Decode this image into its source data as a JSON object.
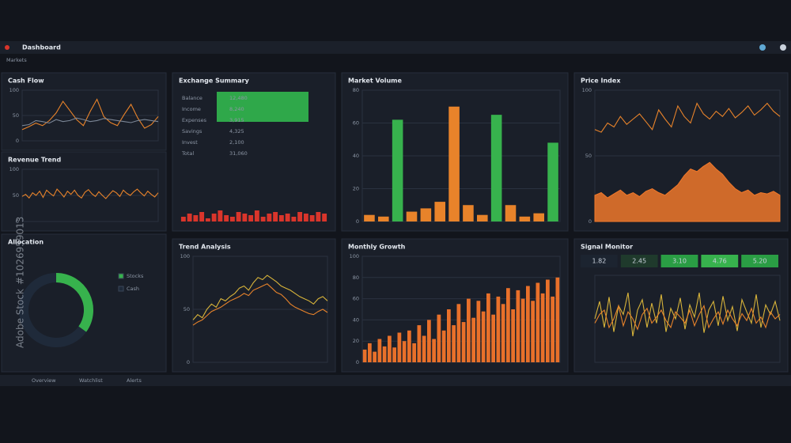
{
  "app": {
    "title": "Dashboard",
    "section": "Markets"
  },
  "panels": [
    {
      "title": "Cash Flow",
      "chart": {
        "type": "line",
        "ylim": [
          0,
          100
        ],
        "yticks": [
          0,
          50,
          100
        ],
        "grid": true,
        "series": [
          {
            "color": "#e8832a",
            "values": [
              22,
              28,
              35,
              30,
              40,
              55,
              78,
              60,
              42,
              30,
              58,
              82,
              48,
              36,
              30,
              52,
              72,
              45,
              25,
              32,
              48
            ]
          },
          {
            "color": "#7b8696",
            "values": [
              30,
              32,
              40,
              38,
              35,
              42,
              38,
              40,
              45,
              42,
              38,
              40,
              44,
              42,
              40,
              38,
              36,
              40,
              42,
              40,
              38
            ]
          }
        ]
      }
    },
    {
      "title": "Revenue Trend",
      "chart": {
        "type": "line",
        "ylim": [
          0,
          100
        ],
        "yticks": [
          0,
          50,
          100
        ],
        "grid": true,
        "series": [
          {
            "color": "#e8832a",
            "values": [
              48,
              52,
              45,
              55,
              50,
              58,
              46,
              60,
              54,
              49,
              62,
              55,
              47,
              58,
              52,
              60,
              50,
              45,
              56,
              61,
              53,
              48,
              57,
              50,
              44,
              52,
              59,
              55,
              48,
              60,
              54,
              50,
              57,
              62,
              55,
              49,
              58,
              52,
              47,
              55
            ]
          }
        ]
      }
    },
    {
      "title": "Exchange Summary",
      "table": {
        "rows": [
          [
            "Balance",
            "12,480"
          ],
          [
            "Income",
            "8,240"
          ],
          [
            "Expenses",
            "3,915"
          ],
          [
            "Savings",
            "4,325"
          ],
          [
            "Invest",
            "2,100"
          ],
          [
            "Total",
            "31,060"
          ]
        ]
      },
      "chart": {
        "type": "bar",
        "ylim": [
          0,
          10
        ],
        "color": "#d9352b",
        "values": [
          3,
          5,
          4,
          6,
          2,
          5,
          7,
          4,
          3,
          6,
          5,
          4,
          7,
          3,
          5,
          6,
          4,
          5,
          3,
          6,
          5,
          4,
          6,
          5
        ]
      }
    },
    {
      "title": "Market Volume",
      "chart": {
        "type": "bar",
        "ylim": [
          0,
          80
        ],
        "yticks": [
          0,
          20,
          40,
          60,
          80
        ],
        "grid": true,
        "values": [
          4,
          3,
          62,
          6,
          8,
          12,
          70,
          10,
          4,
          65,
          10,
          3,
          5,
          48
        ],
        "colors": [
          "#e8832a",
          "#e8832a",
          "#37b24d",
          "#e8832a",
          "#e8832a",
          "#e8832a",
          "#e8832a",
          "#e8832a",
          "#e8832a",
          "#37b24d",
          "#e8832a",
          "#e8832a",
          "#e8832a",
          "#37b24d"
        ]
      }
    },
    {
      "title": "Price Index",
      "chart": {
        "type": "line",
        "ylim": [
          0,
          100
        ],
        "yticks": [
          0,
          50,
          100
        ],
        "grid": true,
        "series": [
          {
            "color": "#e8832a",
            "values": [
              70,
              68,
              75,
              72,
              80,
              74,
              78,
              82,
              76,
              70,
              85,
              78,
              72,
              88,
              80,
              75,
              90,
              82,
              78,
              84,
              80,
              86,
              79,
              83,
              88,
              81,
              85,
              90,
              84,
              80
            ]
          },
          {
            "color": "#f0782a",
            "area": true,
            "values": [
              20,
              22,
              18,
              21,
              24,
              20,
              22,
              19,
              23,
              25,
              22,
              20,
              24,
              28,
              35,
              40,
              38,
              42,
              45,
              40,
              36,
              30,
              25,
              22,
              24,
              20,
              22,
              21,
              23,
              20
            ]
          }
        ]
      }
    },
    {
      "title": "Allocation",
      "chart": {
        "type": "pie",
        "categories": [
          "Stocks",
          "Cash"
        ],
        "values": [
          35,
          65
        ],
        "colors": [
          "#37b24d",
          "#1f2a3a"
        ]
      }
    },
    {
      "title": "Trend Analysis",
      "chart": {
        "type": "line",
        "ylim": [
          0,
          100
        ],
        "yticks": [
          0,
          50,
          100
        ],
        "grid": true,
        "series": [
          {
            "color": "#d8b43a",
            "values": [
              40,
              45,
              42,
              50,
              55,
              52,
              60,
              58,
              62,
              65,
              70,
              72,
              68,
              75,
              80,
              78,
              82,
              79,
              76,
              72,
              70,
              68,
              65,
              62,
              60,
              58,
              55,
              60,
              62,
              58
            ]
          },
          {
            "color": "#e8832a",
            "values": [
              35,
              38,
              40,
              44,
              48,
              50,
              52,
              55,
              58,
              60,
              62,
              65,
              63,
              68,
              70,
              72,
              74,
              70,
              66,
              64,
              60,
              55,
              52,
              50,
              48,
              46,
              45,
              48,
              50,
              47
            ]
          }
        ]
      }
    },
    {
      "title": "Monthly Growth",
      "chart": {
        "type": "bar",
        "ylim": [
          0,
          100
        ],
        "yticks": [
          0,
          20,
          40,
          60,
          80,
          100
        ],
        "grid": true,
        "color": "#e8702a",
        "values": [
          12,
          18,
          10,
          22,
          15,
          25,
          14,
          28,
          20,
          30,
          18,
          35,
          25,
          40,
          22,
          45,
          30,
          50,
          35,
          55,
          38,
          60,
          42,
          58,
          48,
          65,
          45,
          62,
          55,
          70,
          50,
          68,
          60,
          72,
          58,
          75,
          65,
          78,
          62,
          80
        ]
      }
    },
    {
      "title": "Signal Monitor",
      "tags": [
        "1.82",
        "2.45",
        "3.10",
        "4.76",
        "5.20"
      ],
      "tag_colors": [
        "#1c2430",
        "#1f3a2c",
        "#2a9d44",
        "#37b24d",
        "#2a9d44"
      ],
      "chart": {
        "type": "line",
        "ylim": [
          0,
          100
        ],
        "grid": true,
        "series": [
          {
            "color": "#d8b43a",
            "values": [
              50,
              70,
              40,
              75,
              35,
              65,
              55,
              80,
              30,
              60,
              72,
              40,
              68,
              45,
              78,
              35,
              62,
              50,
              74,
              38,
              66,
              52,
              80,
              34,
              60,
              70,
              42,
              76,
              48,
              64,
              36,
              72,
              58,
              45,
              78,
              40,
              66,
              55,
              70,
              48
            ]
          },
          {
            "color": "#e8832a",
            "values": [
              45,
              55,
              60,
              40,
              50,
              65,
              42,
              58,
              50,
              38,
              55,
              62,
              45,
              52,
              60,
              48,
              40,
              58,
              52,
              45,
              60,
              42,
              55,
              65,
              40,
              50,
              58,
              44,
              60,
              50,
              42,
              56,
              48,
              62,
              45,
              52,
              40,
              58,
              50,
              55
            ]
          }
        ]
      }
    }
  ],
  "footer": {
    "tabs": [
      "Overview",
      "Watchlist",
      "Alerts"
    ]
  },
  "watermark": "Adobe Stock",
  "stock_id": "#1026959013"
}
